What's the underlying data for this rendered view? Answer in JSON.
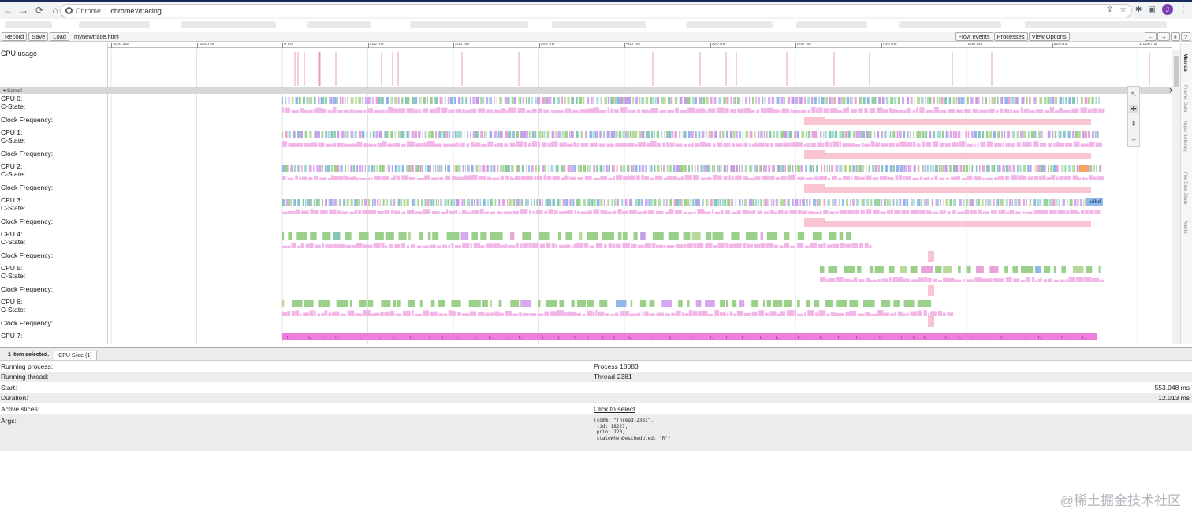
{
  "browser": {
    "nav": [
      "←",
      "→",
      "⟳",
      "⌂"
    ],
    "site_label": "Chrome",
    "url": "chrome://tracing",
    "avatar_letter": "J"
  },
  "toolbar": {
    "record": "Record",
    "save": "Save",
    "load": "Load",
    "filename": "mynewtrace.html",
    "flow_events": "Flow events",
    "processes": "Processes",
    "view_options": "View Options",
    "nav_left": "←",
    "nav_right": "→",
    "zoom": "»",
    "help": "?"
  },
  "ruler": {
    "ticks": [
      "-200 ms",
      "-100 ms",
      "0 ms",
      "100 ms",
      "200 ms",
      "300 ms",
      "400 ms",
      "500 ms",
      "600 ms",
      "700 ms",
      "800 ms",
      "900 ms",
      "1,000 ms"
    ]
  },
  "tracks": {
    "cpu_usage": "CPU usage",
    "kernel": "Kernel",
    "kernel_close": "X",
    "cpus": [
      {
        "name": "CPU 0:",
        "cstate": "C-State:",
        "freq": "Clock Frequency:"
      },
      {
        "name": "CPU 1:",
        "cstate": "C-State:",
        "freq": "Clock Frequency:"
      },
      {
        "name": "CPU 2:",
        "cstate": "C-State:",
        "freq": "Clock Frequency:"
      },
      {
        "name": "CPU 3:",
        "cstate": "C-State:",
        "freq": "Clock Frequency:"
      },
      {
        "name": "CPU 4:",
        "cstate": "C-State:",
        "freq": "Clock Frequency:"
      },
      {
        "name": "CPU 5:",
        "cstate": "C-State:",
        "freq": "Clock Frequency:"
      },
      {
        "name": "CPU 6:",
        "cstate": "C-State:",
        "freq": "Clock Frequency:"
      },
      {
        "name": "CPU 7:",
        "cstate": "",
        "freq": ""
      }
    ],
    "slice_label_cpu3": "adbd"
  },
  "side_tabs": [
    "Metrics",
    "Frame Data",
    "Input Latency",
    "File Size Stats",
    "Alerts"
  ],
  "analysis": {
    "selection_count": "1 item selected.",
    "tab": "CPU Slice (1)",
    "rows": {
      "running_process": {
        "key": "Running process:",
        "value": "Process 18083"
      },
      "running_thread": {
        "key": "Running thread:",
        "value": "Thread-2381"
      },
      "start": {
        "key": "Start:",
        "value": "553.048 ms"
      },
      "duration": {
        "key": "Duration:",
        "value": "12.013 ms"
      },
      "active_slices": {
        "key": "Active slices:",
        "value": "Click to select"
      },
      "args": {
        "key": "Args:",
        "value": "{comm: \"Thread-2381\",\n tid: 18227,\n prio: 120,\n stateWhenDescheduled: \"R\"}"
      }
    }
  },
  "watermark": "@稀土掘金技术社区",
  "colors": {
    "slice_palette": [
      "#9bd08b",
      "#c59ee6",
      "#8fb8e8",
      "#e8a3d8",
      "#a7dbd6",
      "#b8d99a",
      "#d7a8f0",
      "#88c7b5"
    ],
    "cstate": "#f2b6e8",
    "freq": "#f9c5d0",
    "cpu7": "#ee7ddc",
    "usage_spike": "#ea9bb4"
  }
}
